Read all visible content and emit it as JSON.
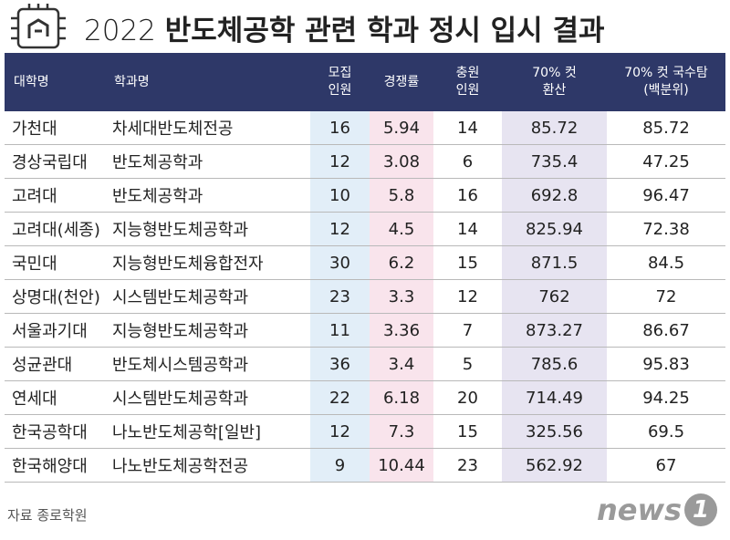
{
  "header": {
    "year": "2022",
    "title": "반도체공학 관련 학과 정시 입시 결과"
  },
  "table": {
    "columns": [
      [
        "대학명"
      ],
      [
        "학과명"
      ],
      [
        "모집",
        "인원"
      ],
      [
        "경쟁률"
      ],
      [
        "충원",
        "인원"
      ],
      [
        "70% 컷",
        "환산"
      ],
      [
        "70% 컷 국수탐",
        "(백분위)"
      ]
    ],
    "rows": [
      [
        "가천대",
        "차세대반도체전공",
        "16",
        "5.94",
        "14",
        "85.72",
        "85.72"
      ],
      [
        "경상국립대",
        "반도체공학과",
        "12",
        "3.08",
        "6",
        "735.4",
        "47.25"
      ],
      [
        "고려대",
        "반도체공학과",
        "10",
        "5.8",
        "16",
        "692.8",
        "96.47"
      ],
      [
        "고려대(세종)",
        "지능형반도체공학과",
        "12",
        "4.5",
        "14",
        "825.94",
        "72.38"
      ],
      [
        "국민대",
        "지능형반도체융합전자",
        "30",
        "6.2",
        "15",
        "871.5",
        "84.5"
      ],
      [
        "상명대(천안)",
        "시스템반도체공학과",
        "23",
        "3.3",
        "12",
        "762",
        "72"
      ],
      [
        "서울과기대",
        "지능형반도체공학과",
        "11",
        "3.36",
        "7",
        "873.27",
        "86.67"
      ],
      [
        "성균관대",
        "반도체시스템공학과",
        "36",
        "3.4",
        "5",
        "785.6",
        "95.83"
      ],
      [
        "연세대",
        "시스템반도체공학과",
        "22",
        "6.18",
        "20",
        "714.49",
        "94.25"
      ],
      [
        "한국공학대",
        "나노반도체공학[일반]",
        "12",
        "7.3",
        "15",
        "325.56",
        "69.5"
      ],
      [
        "한국해양대",
        "나노반도체공학전공",
        "9",
        "10.44",
        "23",
        "562.92",
        "67"
      ]
    ]
  },
  "source": "자료 종로학원",
  "logo": {
    "text": "news",
    "mark": "1"
  }
}
